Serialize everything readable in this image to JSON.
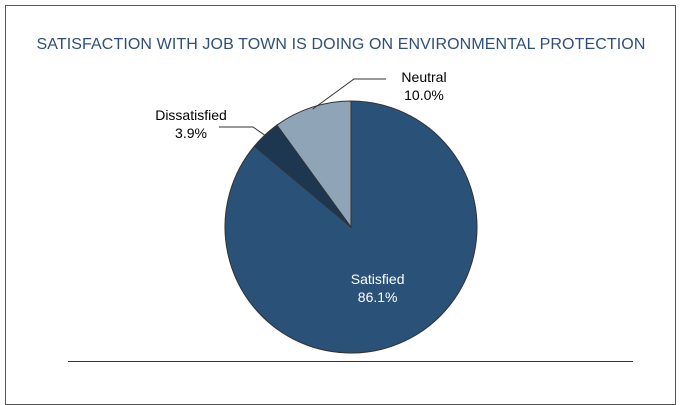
{
  "chart_data": {
    "type": "pie",
    "title": "SATISFACTION WITH JOB TOWN IS DOING ON ENVIRONMENTAL PROTECTION",
    "slices": [
      {
        "label": "Satisfied",
        "value": 86.1,
        "display": "86.1%",
        "color": "#2a5177",
        "label_color": "#ffffff"
      },
      {
        "label": "Dissatisfied",
        "value": 3.9,
        "display": "3.9%",
        "color": "#1e3751",
        "label_color": "#000000"
      },
      {
        "label": "Neutral",
        "value": 10.0,
        "display": "10.0%",
        "color": "#8fa4b7",
        "label_color": "#000000"
      }
    ]
  }
}
